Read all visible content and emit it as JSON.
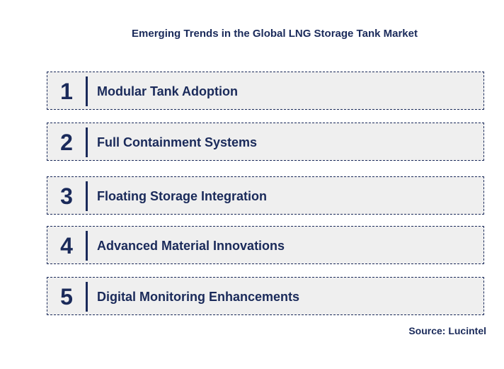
{
  "title": "Emerging Trends in the Global LNG Storage Tank Market",
  "items": [
    {
      "number": "1",
      "label": "Modular Tank Adoption"
    },
    {
      "number": "2",
      "label": "Full Containment Systems"
    },
    {
      "number": "3",
      "label": "Floating Storage Integration"
    },
    {
      "number": "4",
      "label": "Advanced Material Innovations"
    },
    {
      "number": "5",
      "label": "Digital Monitoring Enhancements"
    }
  ],
  "source": "Source: Lucintel"
}
